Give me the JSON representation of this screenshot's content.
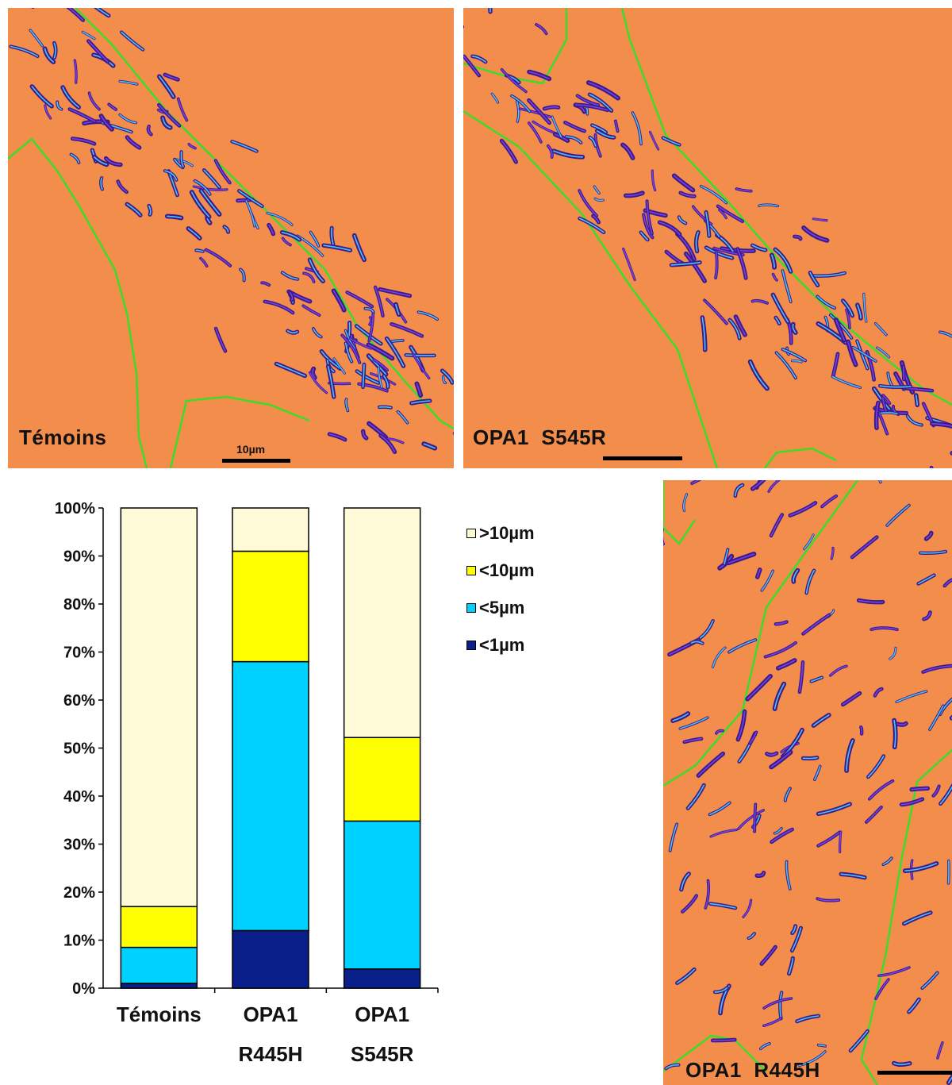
{
  "panels": {
    "controls": {
      "label": "Témoins",
      "scale_label": "10µm"
    },
    "s545r": {
      "label": "OPA1  S545R"
    },
    "r445h": {
      "label": "OPA1  R445H"
    }
  },
  "colors": {
    "background": "#f38d4c",
    "cell_outline": "#3ddc2a",
    "mito_dark": "#3a1a8c",
    "mito_mid": "#7a3fe0",
    "mito_light": "#46c6f0",
    "gt10": "#fffbd9",
    "lt10": "#ffff00",
    "lt5": "#00d2ff",
    "lt1": "#0a1f8a"
  },
  "chart_data": {
    "type": "bar",
    "stacked": true,
    "percent": true,
    "categories": [
      [
        "Témoins"
      ],
      [
        "OPA1",
        "R445H"
      ],
      [
        "OPA1",
        "S545R"
      ]
    ],
    "ylim": [
      0,
      100
    ],
    "yticks": [
      "0%",
      "10%",
      "20%",
      "30%",
      "40%",
      "50%",
      "60%",
      "70%",
      "80%",
      "90%",
      "100%"
    ],
    "series": [
      {
        "name": "<1µm",
        "color": "#0a1f8a",
        "values": [
          1,
          12,
          4
        ]
      },
      {
        "name": "<5µm",
        "color": "#00d2ff",
        "values": [
          7.5,
          56,
          30.8
        ]
      },
      {
        "name": "<10µm",
        "color": "#ffff00",
        "values": [
          8.5,
          23,
          17.4
        ]
      },
      {
        "name": ">10µm",
        "color": "#fffbd9",
        "values": [
          83,
          9,
          47.8
        ]
      }
    ],
    "legend": {
      "placement": "right",
      "order": [
        ">10µm",
        "<10µm",
        "<5µm",
        "<1µm"
      ]
    }
  }
}
